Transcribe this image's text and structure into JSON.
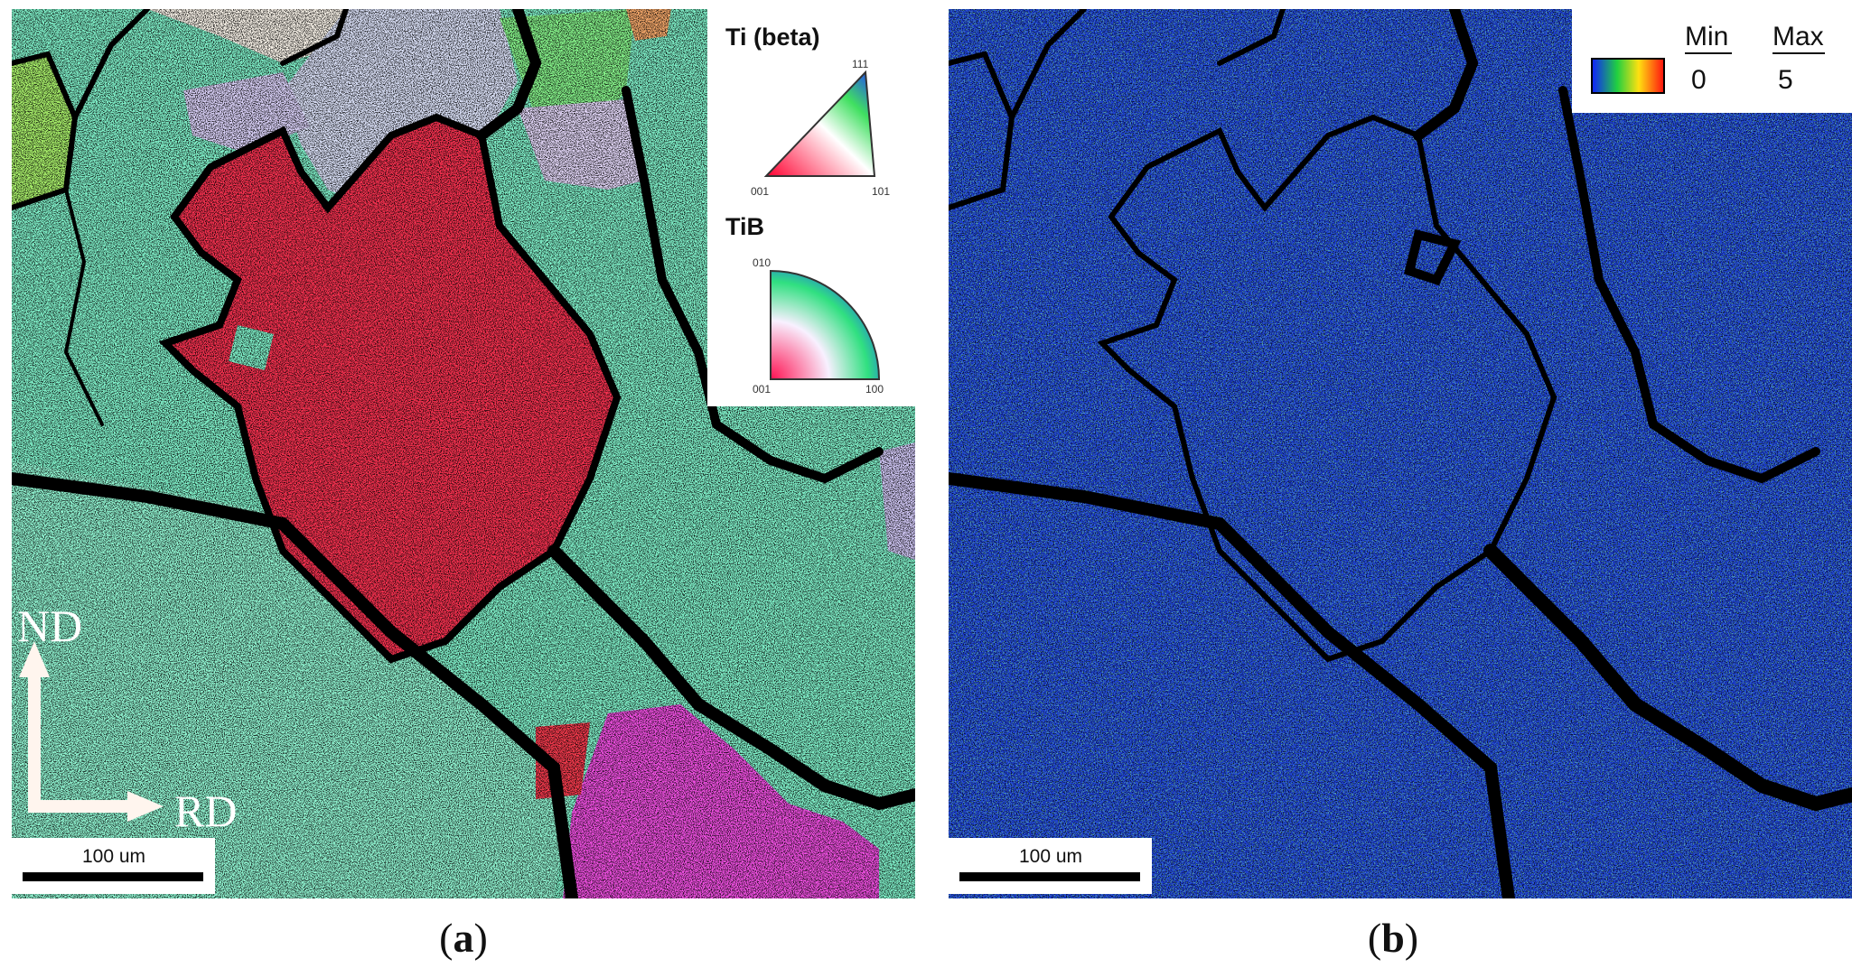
{
  "panel_a": {
    "legend": {
      "ti_title": "Ti (beta)",
      "ti_labels": {
        "top": "111",
        "left": "001",
        "right": "101"
      },
      "tib_title": "TiB",
      "tib_labels": {
        "top": "010",
        "left": "001",
        "right": "100"
      }
    },
    "axes": {
      "vertical": "ND",
      "horizontal": "RD"
    },
    "scale_bar": "100 um",
    "caption_letter": "a"
  },
  "panel_b": {
    "legend": {
      "min_label": "Min",
      "max_label": "Max",
      "min_value": "0",
      "max_value": "5"
    },
    "scale_bar": "100 um",
    "caption_letter": "b"
  },
  "colors": {
    "grain_teal": "#7fefc8",
    "grain_red": "#f4314f",
    "grain_magenta": "#ee4fe0",
    "grain_lavender": "#d8cff6",
    "kam_blue": "#1d3fd4",
    "boundary": "#000000"
  }
}
